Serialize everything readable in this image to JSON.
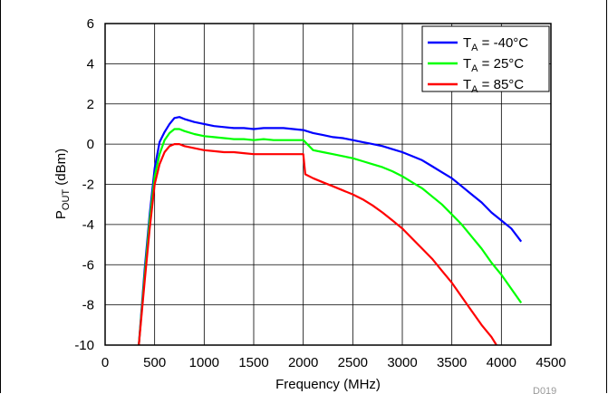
{
  "chart_data": {
    "type": "line",
    "title": "",
    "xlabel": "Frequency (MHz)",
    "ylabel_main": "P",
    "ylabel_sub": "OUT",
    "ylabel_unit": " (dBm)",
    "xlim": [
      0,
      4500
    ],
    "ylim": [
      -10,
      6
    ],
    "xticks": [
      0,
      500,
      1000,
      1500,
      2000,
      2500,
      3000,
      3500,
      4000,
      4500
    ],
    "yticks": [
      -10,
      -8,
      -6,
      -4,
      -2,
      0,
      2,
      4,
      6
    ],
    "grid": true,
    "legend_position": "top-right",
    "figure_code": "D019",
    "series": [
      {
        "name_main": "T",
        "name_sub": "A",
        "name_rest": " = -40°C",
        "color": "#0000ff",
        "x": [
          340,
          400,
          450,
          500,
          550,
          600,
          650,
          700,
          750,
          800,
          900,
          1000,
          1100,
          1200,
          1300,
          1400,
          1500,
          1600,
          1700,
          1800,
          1900,
          2000,
          2100,
          2200,
          2300,
          2400,
          2500,
          2600,
          2700,
          2800,
          2900,
          3000,
          3100,
          3200,
          3300,
          3400,
          3500,
          3600,
          3700,
          3800,
          3900,
          4000,
          4100,
          4200
        ],
        "y": [
          -10,
          -6.2,
          -3.5,
          -1.2,
          0.1,
          0.6,
          1.0,
          1.3,
          1.35,
          1.25,
          1.1,
          1.0,
          0.9,
          0.85,
          0.8,
          0.8,
          0.75,
          0.8,
          0.8,
          0.8,
          0.75,
          0.7,
          0.55,
          0.45,
          0.35,
          0.3,
          0.2,
          0.1,
          0.0,
          -0.1,
          -0.25,
          -0.4,
          -0.6,
          -0.8,
          -1.1,
          -1.4,
          -1.7,
          -2.1,
          -2.5,
          -2.9,
          -3.4,
          -3.8,
          -4.2,
          -4.85
        ]
      },
      {
        "name_main": "T",
        "name_sub": "A",
        "name_rest": " = 25°C",
        "color": "#00ff00",
        "x": [
          340,
          400,
          450,
          500,
          550,
          600,
          650,
          700,
          750,
          800,
          900,
          1000,
          1100,
          1200,
          1300,
          1400,
          1500,
          1600,
          1700,
          1800,
          1900,
          2000,
          2100,
          2200,
          2300,
          2400,
          2500,
          2600,
          2700,
          2800,
          2900,
          3000,
          3100,
          3200,
          3300,
          3400,
          3500,
          3600,
          3700,
          3800,
          3900,
          4000,
          4100,
          4200
        ],
        "y": [
          -10,
          -6.5,
          -3.8,
          -1.6,
          -0.5,
          0.2,
          0.55,
          0.75,
          0.75,
          0.65,
          0.5,
          0.4,
          0.35,
          0.3,
          0.25,
          0.25,
          0.2,
          0.25,
          0.2,
          0.2,
          0.2,
          0.2,
          -0.3,
          -0.4,
          -0.5,
          -0.6,
          -0.7,
          -0.85,
          -1.0,
          -1.15,
          -1.35,
          -1.6,
          -1.9,
          -2.2,
          -2.6,
          -3.0,
          -3.5,
          -4.0,
          -4.6,
          -5.2,
          -5.9,
          -6.5,
          -7.2,
          -7.9
        ]
      },
      {
        "name_main": "T",
        "name_sub": "A",
        "name_rest": " = 85°C",
        "color": "#ff0000",
        "x": [
          340,
          400,
          450,
          500,
          550,
          600,
          650,
          700,
          750,
          800,
          900,
          1000,
          1100,
          1200,
          1300,
          1400,
          1500,
          1600,
          1700,
          1800,
          1900,
          2000,
          2020,
          2100,
          2200,
          2300,
          2400,
          2500,
          2600,
          2700,
          2800,
          2900,
          3000,
          3100,
          3200,
          3300,
          3400,
          3500,
          3600,
          3700,
          3800,
          3900,
          3950
        ],
        "y": [
          -10,
          -6.8,
          -4.2,
          -2.0,
          -1.0,
          -0.4,
          -0.1,
          0.0,
          0.0,
          -0.1,
          -0.2,
          -0.3,
          -0.35,
          -0.4,
          -0.4,
          -0.45,
          -0.5,
          -0.5,
          -0.5,
          -0.5,
          -0.5,
          -0.5,
          -1.5,
          -1.7,
          -1.9,
          -2.1,
          -2.3,
          -2.5,
          -2.75,
          -3.05,
          -3.4,
          -3.8,
          -4.2,
          -4.7,
          -5.2,
          -5.7,
          -6.3,
          -6.9,
          -7.6,
          -8.3,
          -9.0,
          -9.6,
          -10
        ]
      }
    ]
  }
}
